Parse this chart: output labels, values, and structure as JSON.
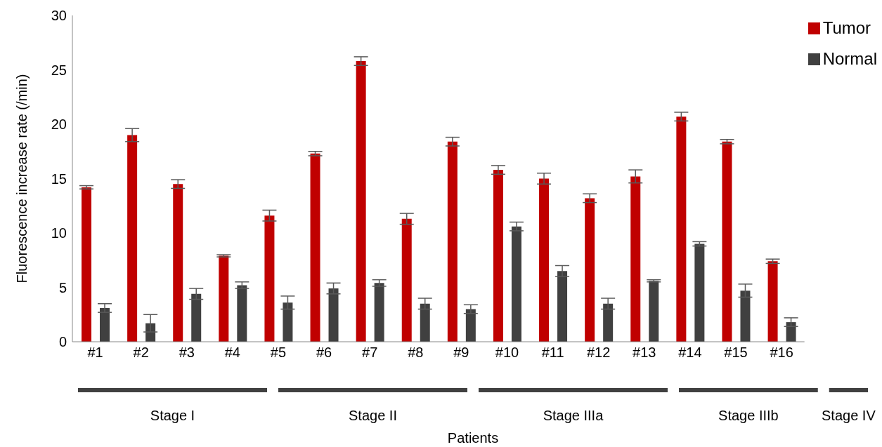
{
  "chart_data": {
    "type": "bar",
    "xlabel": "Patients",
    "ylabel": "Fluorescence increase rate (/min)",
    "categories": [
      "#1",
      "#2",
      "#3",
      "#4",
      "#5",
      "#6",
      "#7",
      "#8",
      "#9",
      "#10",
      "#11",
      "#12",
      "#13",
      "#14",
      "#15",
      "#16"
    ],
    "series": [
      {
        "name": "Tumor",
        "color": "#c00000",
        "values": [
          14.2,
          19.0,
          14.5,
          7.9,
          11.6,
          17.3,
          25.8,
          11.3,
          18.4,
          15.8,
          15.0,
          13.2,
          15.2,
          20.7,
          18.4,
          7.4
        ],
        "errors": [
          0.15,
          0.6,
          0.4,
          0.1,
          0.5,
          0.2,
          0.4,
          0.5,
          0.4,
          0.4,
          0.5,
          0.4,
          0.6,
          0.4,
          0.2,
          0.2
        ]
      },
      {
        "name": "Normal",
        "color": "#404040",
        "values": [
          3.1,
          1.7,
          4.4,
          5.2,
          3.6,
          4.9,
          5.4,
          3.5,
          3.0,
          10.6,
          6.5,
          3.5,
          5.6,
          9.0,
          4.7,
          1.8
        ],
        "errors": [
          0.4,
          0.8,
          0.5,
          0.3,
          0.6,
          0.5,
          0.3,
          0.5,
          0.4,
          0.4,
          0.5,
          0.5,
          0.1,
          0.2,
          0.6,
          0.4
        ]
      }
    ],
    "ylim": [
      0,
      30
    ],
    "yticks": [
      0,
      5,
      10,
      15,
      20,
      25,
      30
    ],
    "grid": false,
    "legend": "top right",
    "annotations": [
      "Stage I",
      "Stage II",
      "Stage IIIa",
      "Stage IIIb",
      "Stage IV"
    ]
  }
}
